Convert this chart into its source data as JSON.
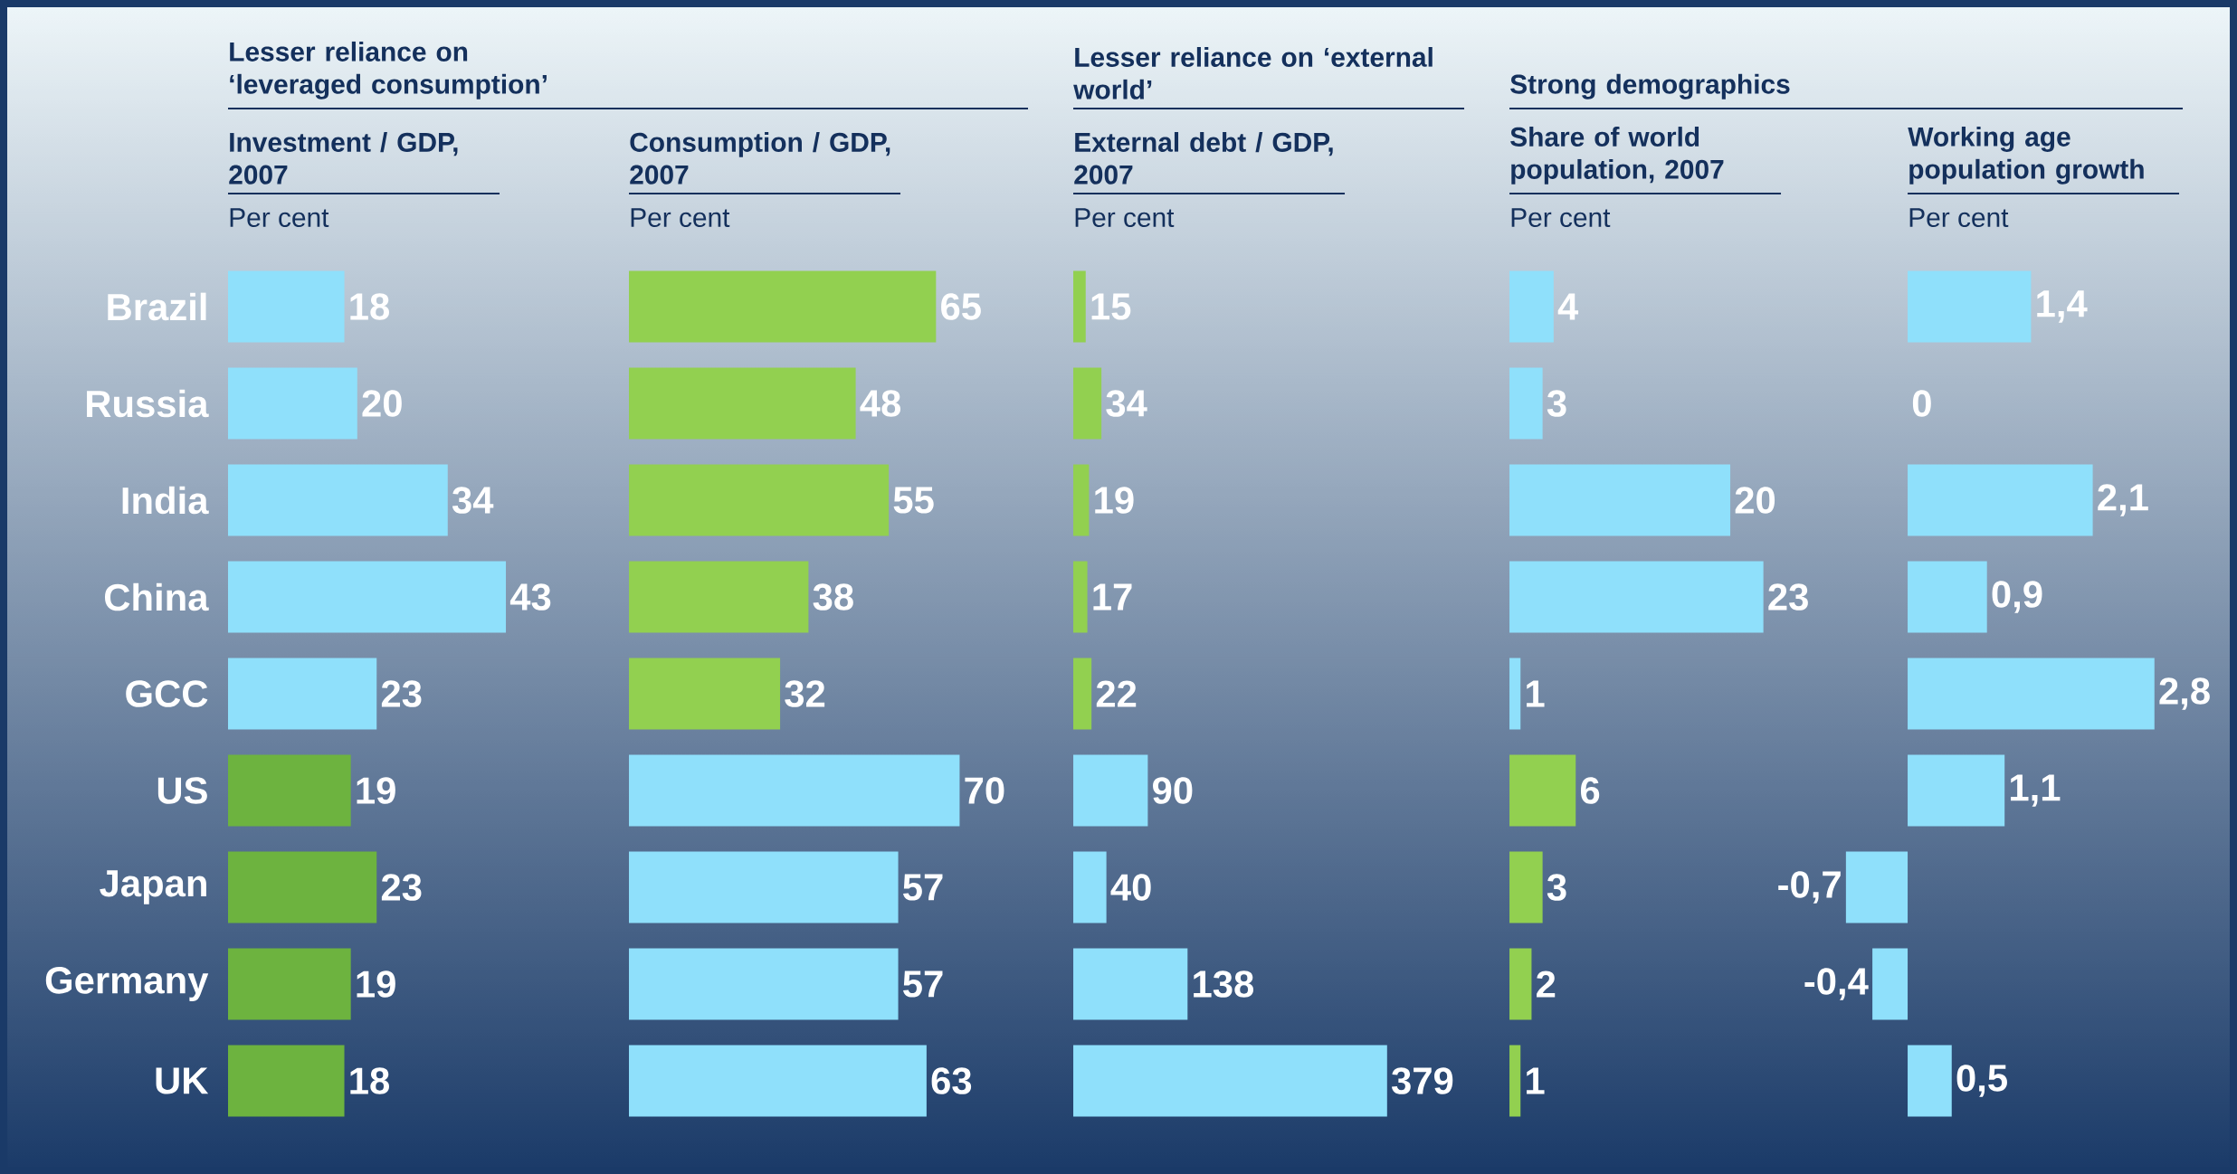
{
  "chart_data": [
    {
      "type": "bar",
      "orientation": "horizontal",
      "title": "Investment / GDP, 2007",
      "subtitle": "Per cent",
      "annotations": [
        "Lesser reliance on ‘leveraged consumption’"
      ],
      "categories": [
        "Brazil",
        "Russia",
        "India",
        "China",
        "GCC",
        "US",
        "Japan",
        "Germany",
        "UK"
      ],
      "values": [
        18,
        20,
        34,
        43,
        23,
        19,
        23,
        19,
        18
      ],
      "colors": [
        "#8fe0fb",
        "#8fe0fb",
        "#8fe0fb",
        "#8fe0fb",
        "#8fe0fb",
        "#6db33f",
        "#6db33f",
        "#6db33f",
        "#6db33f"
      ],
      "data_labels": true,
      "tick_labels": "y"
    },
    {
      "type": "bar",
      "orientation": "horizontal",
      "title": "Consumption / GDP, 2007",
      "subtitle": "Per cent",
      "categories": [
        null,
        null,
        null,
        null,
        null,
        null,
        null,
        null,
        null
      ],
      "values": [
        65,
        48,
        55,
        38,
        32,
        70,
        57,
        57,
        63
      ],
      "colors": [
        "#92d050",
        "#92d050",
        "#92d050",
        "#92d050",
        "#92d050",
        "#8fe0fb",
        "#8fe0fb",
        "#8fe0fb",
        "#8fe0fb"
      ],
      "data_labels": true,
      "tick_labels": false
    },
    {
      "type": "bar",
      "orientation": "horizontal",
      "title": "External debt / GDP, 2007",
      "subtitle": "Per cent",
      "annotations": [
        "Lesser reliance on ‘external world’"
      ],
      "categories": [
        null,
        null,
        null,
        null,
        null,
        null,
        null,
        null,
        null
      ],
      "values": [
        15,
        34,
        19,
        17,
        22,
        90,
        40,
        138,
        379
      ],
      "colors": [
        "#92d050",
        "#92d050",
        "#92d050",
        "#92d050",
        "#92d050",
        "#8fe0fb",
        "#8fe0fb",
        "#8fe0fb",
        "#8fe0fb"
      ],
      "data_labels": true,
      "tick_labels": false
    },
    {
      "type": "bar",
      "orientation": "horizontal",
      "title": "Share of world population, 2007",
      "subtitle": "Per cent",
      "annotations": [
        "Strong demographics"
      ],
      "categories": [
        null,
        null,
        null,
        null,
        null,
        null,
        null,
        null,
        null
      ],
      "values": [
        4,
        3,
        20,
        23,
        1,
        6,
        3,
        2,
        1
      ],
      "colors": [
        "#8fe0fb",
        "#8fe0fb",
        "#8fe0fb",
        "#8fe0fb",
        "#8fe0fb",
        "#92d050",
        "#92d050",
        "#92d050",
        "#92d050"
      ],
      "data_labels": true,
      "tick_labels": false
    },
    {
      "type": "bar",
      "orientation": "horizontal",
      "title": "Working age population growth",
      "subtitle": "Per cent",
      "categories": [
        null,
        null,
        null,
        null,
        null,
        null,
        null,
        null,
        null
      ],
      "values": [
        1.4,
        0,
        2.1,
        0.9,
        2.8,
        1.1,
        -0.7,
        -0.4,
        0.5
      ],
      "value_labels": [
        "1,4",
        "0",
        "2,1",
        "0,9",
        "2,8",
        "1,1",
        "-0,7",
        "-0,4",
        "0,5"
      ],
      "colors": [
        "#8fe0fb",
        "#8fe0fb",
        "#8fe0fb",
        "#8fe0fb",
        "#8fe0fb",
        "#8fe0fb",
        "#8fe0fb",
        "#8fe0fb",
        "#8fe0fb"
      ],
      "tick_labels": false
    }
  ]
}
